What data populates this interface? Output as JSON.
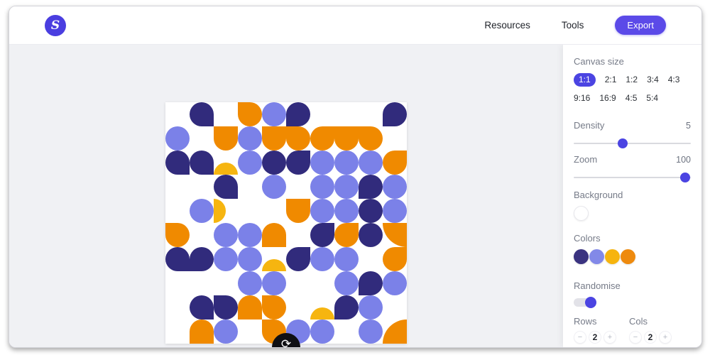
{
  "header": {
    "logo_letter": "S",
    "nav": [
      {
        "label": "Resources"
      },
      {
        "label": "Tools"
      }
    ],
    "export_label": "Export"
  },
  "palette": {
    "accent": "#4b44e2",
    "navy": "#312b7c",
    "periwinkle": "#7b81e8",
    "yellow": "#f6b510",
    "orange": "#f08a00"
  },
  "sidebar": {
    "canvas_size": {
      "label": "Canvas size",
      "options": [
        "1:1",
        "2:1",
        "1:2",
        "3:4",
        "4:3",
        "9:16",
        "16:9",
        "4:5",
        "5:4"
      ],
      "selected": "1:1"
    },
    "density": {
      "label": "Density",
      "value": "5",
      "percent": 42
    },
    "zoom": {
      "label": "Zoom",
      "value": "100",
      "percent": 95
    },
    "background": {
      "label": "Background",
      "swatch": "#ffffff"
    },
    "colors": {
      "label": "Colors",
      "swatches": [
        "#3a3380",
        "#8289e8",
        "#f6b40e",
        "#ee8a0e"
      ]
    },
    "randomise": {
      "label": "Randomise",
      "on": true
    },
    "rows": {
      "label": "Rows",
      "value": "2",
      "minus": "−",
      "plus": "+"
    },
    "cols": {
      "label": "Cols",
      "value": "2",
      "minus": "−",
      "plus": "+"
    }
  },
  "canvas": {
    "cell_size": 34,
    "grid": 10,
    "refresh_icon": "⟳",
    "cells": [
      [
        0,
        1,
        "navy",
        "leaf-br"
      ],
      [
        0,
        3,
        "orange",
        "leaf-tl"
      ],
      [
        0,
        4,
        "periwinkle",
        "circle"
      ],
      [
        0,
        5,
        "navy",
        "leaf-bl"
      ],
      [
        0,
        9,
        "navy",
        "leaf-bl"
      ],
      [
        1,
        0,
        "periwinkle",
        "circle"
      ],
      [
        1,
        2,
        "orange",
        "arch-down"
      ],
      [
        1,
        3,
        "periwinkle",
        "circle"
      ],
      [
        1,
        4,
        "orange",
        "arch-down"
      ],
      [
        1,
        5,
        "orange",
        "leaf-tl"
      ],
      [
        1,
        6,
        "orange",
        "leaf-tr"
      ],
      [
        1,
        7,
        "orange",
        "arch-down"
      ],
      [
        1,
        8,
        "orange",
        "leaf-tl"
      ],
      [
        2,
        0,
        "navy",
        "leaf-br"
      ],
      [
        2,
        1,
        "navy",
        "leaf-br"
      ],
      [
        2,
        2,
        "yellow",
        "dome-up"
      ],
      [
        2,
        3,
        "periwinkle",
        "circle"
      ],
      [
        2,
        4,
        "navy",
        "circle"
      ],
      [
        2,
        5,
        "navy",
        "leaf-tr"
      ],
      [
        2,
        6,
        "periwinkle",
        "circle"
      ],
      [
        2,
        7,
        "periwinkle",
        "circle"
      ],
      [
        2,
        8,
        "periwinkle",
        "circle"
      ],
      [
        2,
        9,
        "orange",
        "leaf-tr"
      ],
      [
        3,
        2,
        "navy",
        "leaf-br"
      ],
      [
        3,
        4,
        "periwinkle",
        "circle"
      ],
      [
        3,
        6,
        "periwinkle",
        "circle"
      ],
      [
        3,
        7,
        "periwinkle",
        "circle"
      ],
      [
        3,
        8,
        "navy",
        "leaf-bl"
      ],
      [
        3,
        9,
        "periwinkle",
        "circle"
      ],
      [
        4,
        1,
        "periwinkle",
        "circle"
      ],
      [
        4,
        2,
        "yellow",
        "dome-right"
      ],
      [
        4,
        5,
        "orange",
        "arch-down"
      ],
      [
        4,
        6,
        "periwinkle",
        "circle"
      ],
      [
        4,
        7,
        "periwinkle",
        "circle"
      ],
      [
        4,
        8,
        "navy",
        "circle"
      ],
      [
        4,
        9,
        "periwinkle",
        "circle"
      ],
      [
        5,
        0,
        "orange",
        "leaf-tl"
      ],
      [
        5,
        2,
        "periwinkle",
        "circle"
      ],
      [
        5,
        3,
        "periwinkle",
        "circle"
      ],
      [
        5,
        4,
        "orange",
        "arch-up"
      ],
      [
        5,
        6,
        "navy",
        "leaf-tr"
      ],
      [
        5,
        7,
        "orange",
        "leaf-tr"
      ],
      [
        5,
        8,
        "navy",
        "circle"
      ],
      [
        5,
        9,
        "orange",
        "quarter-bl"
      ],
      [
        6,
        0,
        "navy",
        "leaf-br"
      ],
      [
        6,
        1,
        "navy",
        "leaf-bl"
      ],
      [
        6,
        2,
        "periwinkle",
        "circle"
      ],
      [
        6,
        3,
        "periwinkle",
        "circle"
      ],
      [
        6,
        4,
        "yellow",
        "dome-up"
      ],
      [
        6,
        5,
        "navy",
        "leaf-tr"
      ],
      [
        6,
        6,
        "periwinkle",
        "circle"
      ],
      [
        6,
        7,
        "periwinkle",
        "circle"
      ],
      [
        6,
        9,
        "orange",
        "leaf-tr"
      ],
      [
        7,
        3,
        "periwinkle",
        "circle"
      ],
      [
        7,
        4,
        "periwinkle",
        "circle"
      ],
      [
        7,
        7,
        "periwinkle",
        "circle"
      ],
      [
        7,
        8,
        "navy",
        "leaf-bl"
      ],
      [
        7,
        9,
        "periwinkle",
        "circle"
      ],
      [
        8,
        1,
        "navy",
        "leaf-br"
      ],
      [
        8,
        2,
        "navy",
        "leaf-tl"
      ],
      [
        8,
        3,
        "orange",
        "arch-up"
      ],
      [
        8,
        4,
        "orange",
        "leaf-tl"
      ],
      [
        8,
        6,
        "yellow",
        "dome-up"
      ],
      [
        8,
        7,
        "navy",
        "leaf-bl"
      ],
      [
        8,
        8,
        "periwinkle",
        "circle"
      ],
      [
        9,
        1,
        "orange",
        "arch-up"
      ],
      [
        9,
        2,
        "periwinkle",
        "circle"
      ],
      [
        9,
        4,
        "orange",
        "leaf-tl"
      ],
      [
        9,
        5,
        "periwinkle",
        "circle"
      ],
      [
        9,
        6,
        "periwinkle",
        "circle"
      ],
      [
        9,
        8,
        "periwinkle",
        "circle"
      ],
      [
        9,
        9,
        "orange",
        "quarter-tl"
      ]
    ]
  }
}
